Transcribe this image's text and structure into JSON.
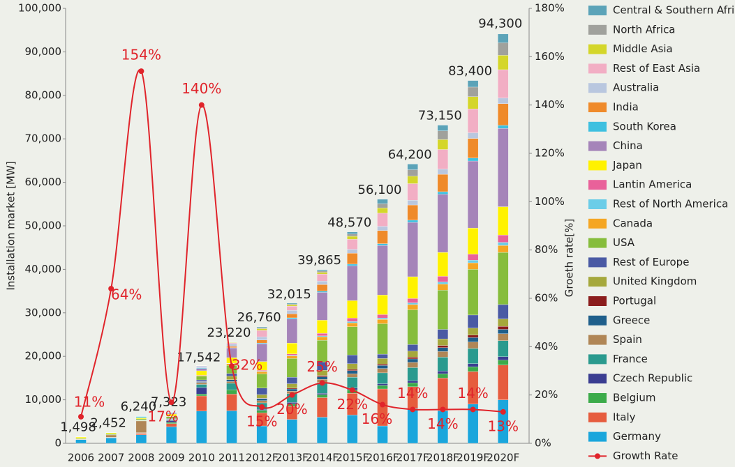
{
  "chart_data": {
    "type": "bar",
    "y_label": "Installation market [MW]",
    "y2_label": "Groeth rate[%]",
    "categories": [
      "2006",
      "2007",
      "2008",
      "2009",
      "2010",
      "2011",
      "2012F",
      "2013F",
      "2014F",
      "2015F",
      "2016F",
      "2017F",
      "2018F",
      "2019F",
      "2020F"
    ],
    "ylim": [
      0,
      100000
    ],
    "yticks": [
      0,
      {
        "value": 10000,
        "label": "10,000"
      },
      {
        "value": 20000,
        "label": "20,000"
      },
      {
        "value": 30000,
        "label": "30,000"
      },
      {
        "value": 40000,
        "label": "40,000"
      },
      {
        "value": 50000,
        "label": "50,000"
      },
      {
        "value": 60000,
        "label": "60,000"
      },
      {
        "value": 70000,
        "label": "70,000"
      },
      {
        "value": 80000,
        "label": "80,000"
      },
      {
        "value": 90000,
        "label": "90,000"
      },
      {
        "value": 100000,
        "label": "100,000"
      }
    ],
    "y2lim": [
      0,
      180
    ],
    "y2ticks": [
      {
        "value": 0,
        "label": "0%"
      },
      {
        "value": 20,
        "label": "20%"
      },
      {
        "value": 40,
        "label": "40%"
      },
      {
        "value": 60,
        "label": "60%"
      },
      {
        "value": 80,
        "label": "80%"
      },
      {
        "value": 100,
        "label": "100%"
      },
      {
        "value": 120,
        "label": "120%"
      },
      {
        "value": 140,
        "label": "140%"
      },
      {
        "value": 160,
        "label": "160%"
      },
      {
        "value": 180,
        "label": "180%"
      }
    ],
    "totals": {
      "values": [
        1498,
        2452,
        6240,
        7323,
        17542,
        23220,
        26760,
        32015,
        39865,
        48570,
        56100,
        64200,
        73150,
        83400,
        94300
      ],
      "value_labels": [
        "1,498",
        "2,452",
        "6,240",
        "7,323",
        "17,542",
        "23,220",
        "26,760",
        "32,015",
        "39,865",
        "48,570",
        "56,100",
        "64,200",
        "73,150",
        "83,400",
        "94,300"
      ]
    },
    "series": [
      {
        "name": "Central & Southern Africa",
        "color": "#5ba3b8",
        "values": [
          2,
          2,
          5,
          10,
          20,
          50,
          200,
          200,
          300,
          500,
          1000,
          1300,
          1300,
          1500,
          2000
        ]
      },
      {
        "name": "North Africa",
        "color": "#a0a19c",
        "values": [
          2,
          2,
          5,
          10,
          20,
          50,
          200,
          200,
          300,
          500,
          1000,
          1500,
          2000,
          2200,
          2900
        ]
      },
      {
        "name": "Middle Asia",
        "color": "#d4d62a",
        "values": [
          2,
          2,
          5,
          30,
          30,
          100,
          400,
          300,
          400,
          700,
          1200,
          1700,
          2300,
          2800,
          3300
        ]
      },
      {
        "name": "Rest of East Asia",
        "color": "#f2aec4",
        "values": [
          10,
          10,
          20,
          30,
          100,
          200,
          1500,
          1000,
          1600,
          2300,
          3000,
          3800,
          4500,
          5500,
          6500
        ]
      },
      {
        "name": "Australia",
        "color": "#b9c7df",
        "values": [
          10,
          10,
          20,
          80,
          380,
          600,
          700,
          800,
          800,
          900,
          1000,
          1100,
          1200,
          1300,
          1300
        ]
      },
      {
        "name": "India",
        "color": "#ef8a2a",
        "values": [
          10,
          10,
          10,
          30,
          30,
          300,
          700,
          900,
          1500,
          2500,
          3000,
          3500,
          4000,
          4500,
          5000
        ]
      },
      {
        "name": "South Korea",
        "color": "#3ec0e0",
        "values": [
          20,
          40,
          270,
          170,
          130,
          80,
          200,
          300,
          300,
          400,
          400,
          500,
          600,
          700,
          700
        ]
      },
      {
        "name": "China",
        "color": "#a584b9",
        "values": [
          10,
          20,
          45,
          160,
          520,
          2200,
          4060,
          5500,
          6400,
          8000,
          11400,
          12500,
          13350,
          15400,
          18000
        ]
      },
      {
        "name": "Japan",
        "color": "#fff200",
        "values": [
          290,
          210,
          230,
          480,
          990,
          1300,
          2000,
          2500,
          3000,
          4000,
          4500,
          5000,
          5500,
          6000,
          6500
        ]
      },
      {
        "name": "Lantin America",
        "color": "#e9619a",
        "values": [
          2,
          3,
          5,
          10,
          30,
          50,
          200,
          300,
          600,
          800,
          800,
          1000,
          1300,
          1400,
          1700
        ]
      },
      {
        "name": "Rest of North America",
        "color": "#6bcde8",
        "values": [
          3,
          3,
          5,
          10,
          20,
          50,
          100,
          150,
          200,
          300,
          300,
          400,
          500,
          600,
          700
        ]
      },
      {
        "name": "Canada",
        "color": "#f5a623",
        "values": [
          2,
          5,
          10,
          70,
          180,
          360,
          500,
          600,
          800,
          900,
          1000,
          1200,
          1400,
          1500,
          1600
        ]
      },
      {
        "name": "USA",
        "color": "#86bd3c",
        "values": [
          140,
          210,
          340,
          470,
          880,
          1900,
          3300,
          4300,
          5000,
          6500,
          7000,
          8000,
          9000,
          10500,
          12000
        ]
      },
      {
        "name": "Rest of Europe",
        "color": "#4a5aa4",
        "values": [
          30,
          40,
          60,
          150,
          400,
          600,
          1500,
          1500,
          1900,
          2000,
          1000,
          1500,
          2200,
          3000,
          3300
        ]
      },
      {
        "name": "United Kingdom",
        "color": "#a5a83c",
        "values": [
          2,
          3,
          5,
          10,
          50,
          800,
          800,
          1000,
          1200,
          1300,
          1300,
          1400,
          1500,
          1600,
          1700
        ]
      },
      {
        "name": "Portugal",
        "color": "#8b1d1d",
        "values": [
          1,
          15,
          50,
          30,
          40,
          15,
          100,
          200,
          300,
          300,
          300,
          400,
          500,
          600,
          700
        ]
      },
      {
        "name": "Greece",
        "color": "#1f5f8b",
        "values": [
          1,
          2,
          10,
          40,
          150,
          430,
          500,
          500,
          600,
          700,
          700,
          800,
          900,
          1000,
          1000
        ]
      },
      {
        "name": "Spain",
        "color": "#b08656",
        "values": [
          100,
          560,
          2700,
          60,
          400,
          400,
          500,
          600,
          700,
          800,
          1000,
          1200,
          1300,
          1500,
          1600
        ]
      },
      {
        "name": "France",
        "color": "#2a9a8e",
        "values": [
          10,
          10,
          50,
          180,
          720,
          1500,
          1500,
          2000,
          2500,
          2500,
          2500,
          3000,
          3200,
          3500,
          3700
        ]
      },
      {
        "name": "Czech Republic",
        "color": "#3a3d91",
        "values": [
          1,
          3,
          50,
          410,
          1500,
          6,
          200,
          300,
          300,
          400,
          400,
          500,
          600,
          700,
          800
        ]
      },
      {
        "name": "Belgium",
        "color": "#3cab4a",
        "values": [
          2,
          20,
          50,
          290,
          420,
          990,
          600,
          600,
          700,
          800,
          800,
          900,
          1000,
          1100,
          1100
        ]
      },
      {
        "name": "Italy",
        "color": "#e65c3e",
        "values": [
          10,
          70,
          340,
          720,
          3500,
          3800,
          3000,
          3000,
          4500,
          5000,
          8500,
          5000,
          7500,
          7500,
          8000
        ]
      },
      {
        "name": "Germany",
        "color": "#1aa6dc",
        "values": [
          850,
          1270,
          1950,
          3800,
          7400,
          7500,
          4000,
          5500,
          6000,
          6500,
          4000,
          8000,
          7500,
          9000,
          10000
        ]
      },
      {
        "name": "Growth Rate",
        "type": "line",
        "axis": "y2",
        "color": "#e0242b",
        "values": [
          11,
          64,
          154,
          17,
          140,
          32,
          15,
          20,
          25,
          22,
          16,
          14,
          14,
          14,
          13
        ],
        "value_labels": [
          "11%",
          "64%",
          "154%",
          "17%",
          "140%",
          "32%",
          "15%",
          "20%",
          "25%",
          "22%",
          "16%",
          "14%",
          "14%",
          "14%",
          "13%"
        ]
      }
    ]
  }
}
